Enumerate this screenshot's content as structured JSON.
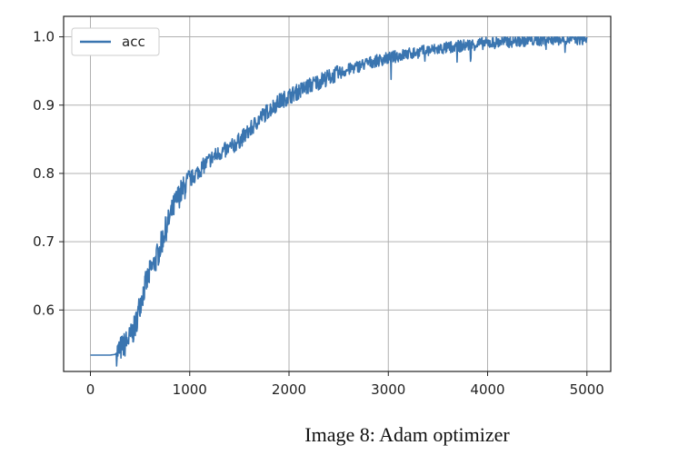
{
  "caption": "Image 8: Adam optimizer",
  "chart_data": {
    "type": "line",
    "title": "",
    "xlabel": "",
    "ylabel": "",
    "xlim": [
      -270,
      5240
    ],
    "ylim": [
      0.51,
      1.03
    ],
    "xticks": [
      0,
      1000,
      2000,
      3000,
      4000,
      5000
    ],
    "xtick_labels": [
      "0",
      "1000",
      "2000",
      "3000",
      "4000",
      "5000"
    ],
    "yticks": [
      0.6,
      0.7,
      0.8,
      0.9,
      1.0
    ],
    "ytick_labels": [
      "0.6",
      "0.7",
      "0.8",
      "0.9",
      "1.0"
    ],
    "grid": true,
    "legend_position": "upper-left",
    "series": [
      {
        "name": "acc",
        "color": "#3a75b0",
        "noise": 0.012,
        "points": [
          [
            0,
            0.534
          ],
          [
            100,
            0.534
          ],
          [
            200,
            0.534
          ],
          [
            250,
            0.535
          ],
          [
            300,
            0.543
          ],
          [
            350,
            0.55
          ],
          [
            400,
            0.56
          ],
          [
            450,
            0.575
          ],
          [
            500,
            0.61
          ],
          [
            550,
            0.635
          ],
          [
            600,
            0.655
          ],
          [
            650,
            0.67
          ],
          [
            700,
            0.69
          ],
          [
            750,
            0.715
          ],
          [
            800,
            0.735
          ],
          [
            850,
            0.755
          ],
          [
            900,
            0.77
          ],
          [
            950,
            0.78
          ],
          [
            1000,
            0.79
          ],
          [
            1100,
            0.805
          ],
          [
            1200,
            0.82
          ],
          [
            1300,
            0.83
          ],
          [
            1400,
            0.836
          ],
          [
            1500,
            0.848
          ],
          [
            1600,
            0.862
          ],
          [
            1700,
            0.88
          ],
          [
            1800,
            0.893
          ],
          [
            1900,
            0.905
          ],
          [
            2000,
            0.913
          ],
          [
            2200,
            0.928
          ],
          [
            2400,
            0.941
          ],
          [
            2600,
            0.952
          ],
          [
            2800,
            0.962
          ],
          [
            3000,
            0.969
          ],
          [
            3200,
            0.975
          ],
          [
            3400,
            0.98
          ],
          [
            3600,
            0.984
          ],
          [
            3800,
            0.988
          ],
          [
            4000,
            0.991
          ],
          [
            4200,
            0.993
          ],
          [
            4400,
            0.995
          ],
          [
            4600,
            0.996
          ],
          [
            4800,
            0.997
          ],
          [
            5000,
            0.997
          ]
        ]
      }
    ]
  }
}
